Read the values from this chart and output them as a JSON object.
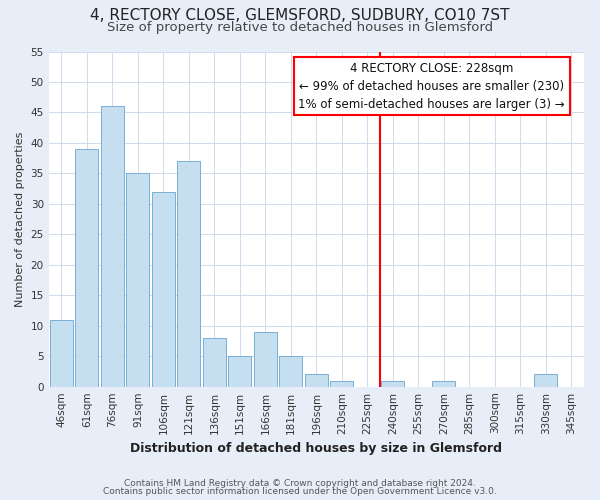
{
  "title": "4, RECTORY CLOSE, GLEMSFORD, SUDBURY, CO10 7ST",
  "subtitle": "Size of property relative to detached houses in Glemsford",
  "xlabel": "Distribution of detached houses by size in Glemsford",
  "ylabel": "Number of detached properties",
  "footer_line1": "Contains HM Land Registry data © Crown copyright and database right 2024.",
  "footer_line2": "Contains public sector information licensed under the Open Government Licence v3.0.",
  "bar_labels": [
    "46sqm",
    "61sqm",
    "76sqm",
    "91sqm",
    "106sqm",
    "121sqm",
    "136sqm",
    "151sqm",
    "166sqm",
    "181sqm",
    "196sqm",
    "210sqm",
    "225sqm",
    "240sqm",
    "255sqm",
    "270sqm",
    "285sqm",
    "300sqm",
    "315sqm",
    "330sqm",
    "345sqm"
  ],
  "bar_values": [
    11,
    39,
    46,
    35,
    32,
    37,
    8,
    5,
    9,
    5,
    2,
    1,
    0,
    1,
    0,
    1,
    0,
    0,
    0,
    2,
    0
  ],
  "bar_color": "#c5dff0",
  "bar_edge_color": "#7aafd4",
  "ylim": [
    0,
    55
  ],
  "yticks": [
    0,
    5,
    10,
    15,
    20,
    25,
    30,
    35,
    40,
    45,
    50,
    55
  ],
  "annotation_title": "4 RECTORY CLOSE: 228sqm",
  "annotation_line1": "← 99% of detached houses are smaller (230)",
  "annotation_line2": "1% of semi-detached houses are larger (3) →",
  "background_color": "#e8eef8",
  "plot_background": "#ffffff",
  "grid_color": "#c8d4e8",
  "title_fontsize": 11,
  "subtitle_fontsize": 9.5,
  "ylabel_fontsize": 8,
  "xlabel_fontsize": 9,
  "annotation_fontsize": 8.5,
  "tick_fontsize": 7.5,
  "footer_fontsize": 6.5
}
